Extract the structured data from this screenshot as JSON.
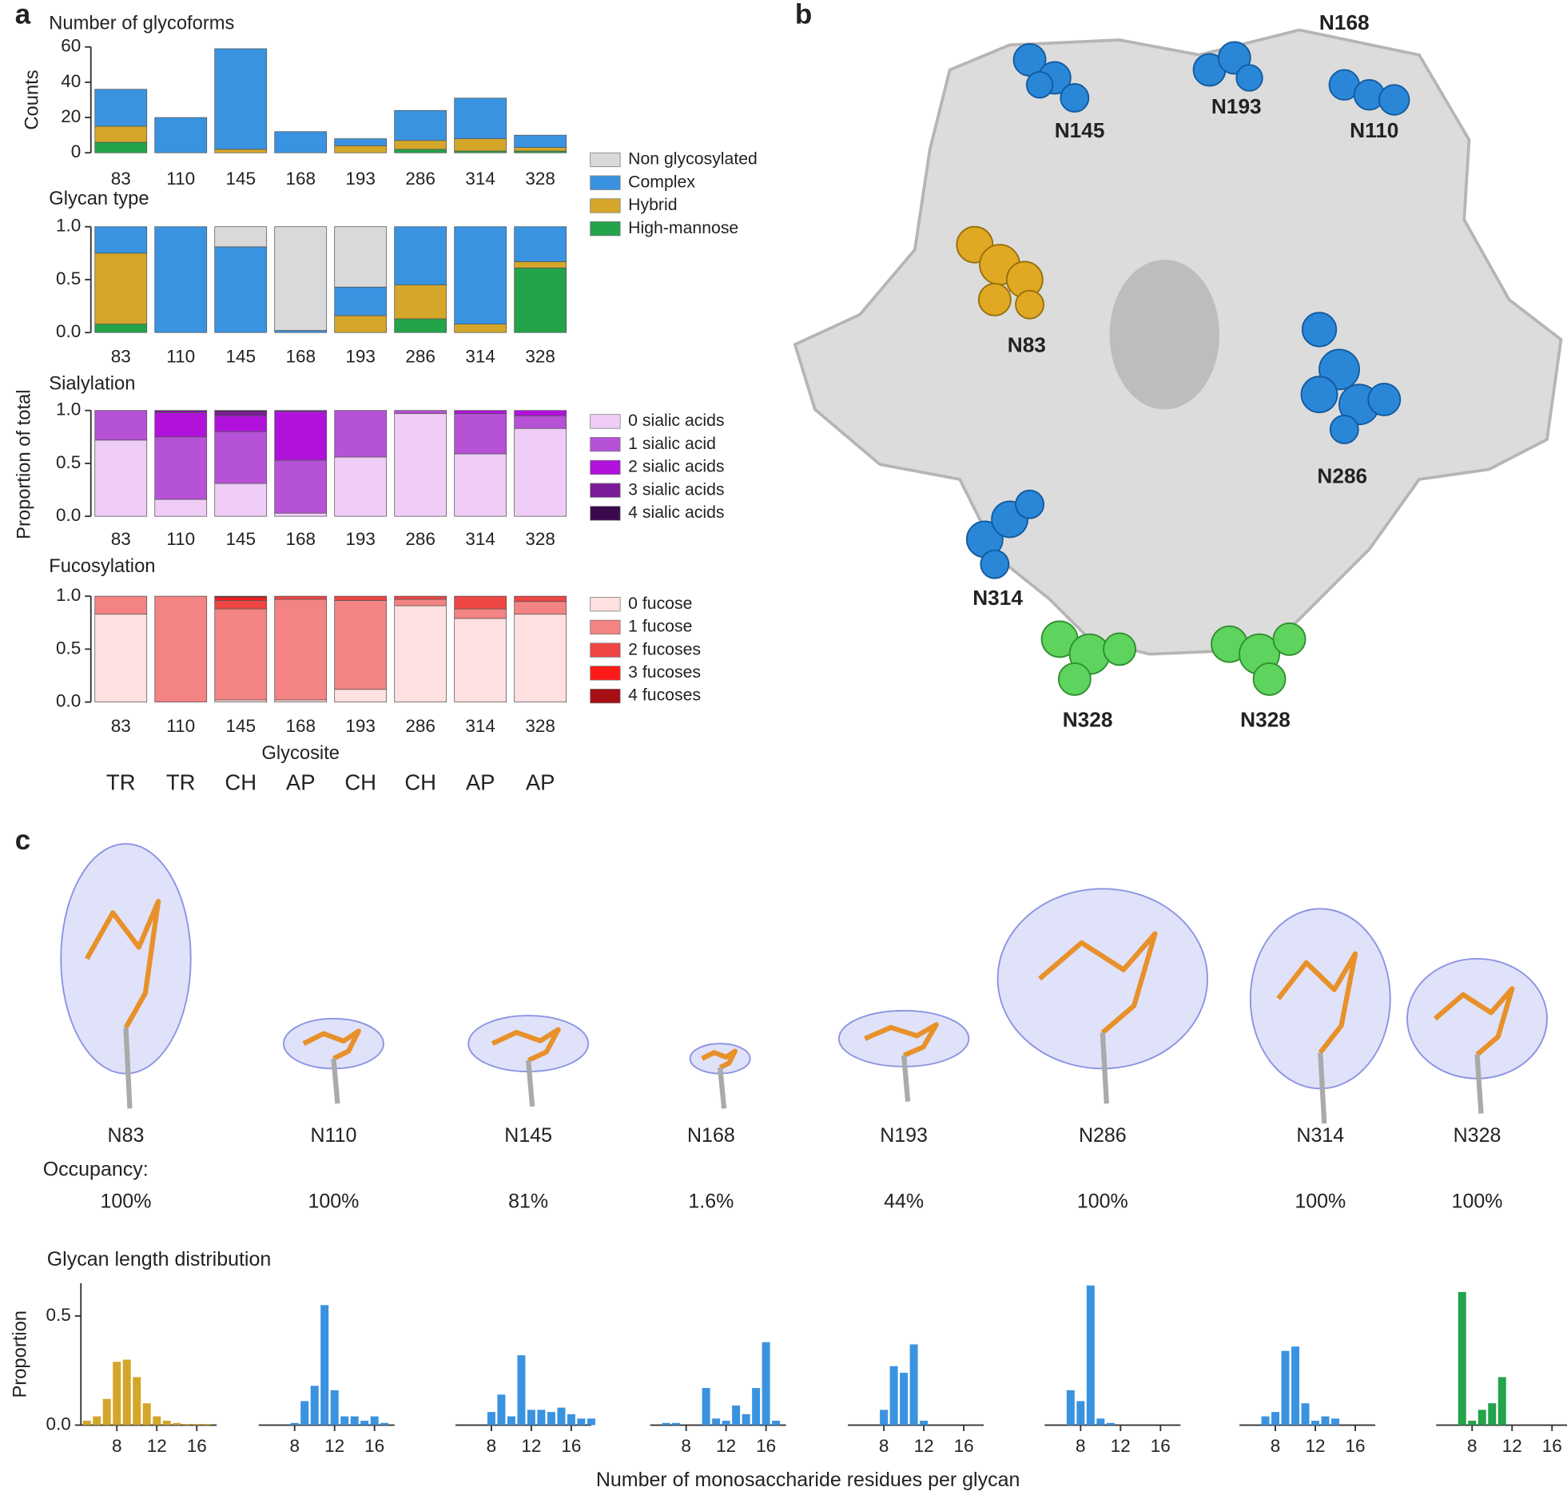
{
  "panel_labels": [
    "a",
    "b",
    "c"
  ],
  "glycosite_classes": [
    "TR",
    "TR",
    "CH",
    "AP",
    "CH",
    "CH",
    "AP",
    "AP"
  ],
  "chart_data": [
    {
      "type": "stacked_bar",
      "title": "Number of glycoforms",
      "y_label": "Counts",
      "categories": [
        "83",
        "110",
        "145",
        "168",
        "193",
        "286",
        "314",
        "328"
      ],
      "ylim": [
        0,
        60
      ],
      "yticks": [
        0,
        20,
        40,
        60
      ],
      "series": [
        {
          "color": "#23a34a",
          "values": [
            6,
            0,
            0,
            0,
            0,
            2,
            1,
            1
          ]
        },
        {
          "color": "#d4a62a",
          "values": [
            9,
            0,
            2,
            0,
            4,
            5,
            7,
            2
          ]
        },
        {
          "color": "#3a93e0",
          "values": [
            21,
            20,
            57,
            12,
            4,
            17,
            23,
            7
          ]
        }
      ]
    },
    {
      "type": "stacked_bar",
      "title": "Glycan type",
      "categories": [
        "83",
        "110",
        "145",
        "168",
        "193",
        "286",
        "314",
        "328"
      ],
      "ylim": [
        0,
        1
      ],
      "yticks": [
        {
          "value": 0,
          "label": "0.0"
        },
        {
          "value": 0.5,
          "label": "0.5"
        },
        {
          "value": 1,
          "label": "1.0"
        }
      ],
      "legend": "right",
      "legend_reversed": true,
      "series": [
        {
          "name": "High-mannose",
          "color": "#23a34a",
          "values": [
            0.08,
            0,
            0,
            0,
            0,
            0.13,
            0,
            0.61
          ]
        },
        {
          "name": "Hybrid",
          "color": "#d4a62a",
          "values": [
            0.67,
            0,
            0,
            0,
            0.16,
            0.32,
            0.08,
            0.06
          ]
        },
        {
          "name": "Complex",
          "color": "#3a93e0",
          "values": [
            0.25,
            1.0,
            0.81,
            0.02,
            0.27,
            0.55,
            0.92,
            0.33
          ]
        },
        {
          "name": "Non glycosylated",
          "color": "#d9d9d9",
          "values": [
            0,
            0,
            0.19,
            0.98,
            0.57,
            0,
            0,
            0
          ]
        }
      ]
    },
    {
      "type": "stacked_bar",
      "title": "Sialylation",
      "y_label": "Proportion of total",
      "categories": [
        "83",
        "110",
        "145",
        "168",
        "193",
        "286",
        "314",
        "328"
      ],
      "ylim": [
        0,
        1
      ],
      "yticks": [
        {
          "value": 0,
          "label": "0.0"
        },
        {
          "value": 0.5,
          "label": "0.5"
        },
        {
          "value": 1,
          "label": "1.0"
        }
      ],
      "legend": "right",
      "series": [
        {
          "name": "0 sialic acids",
          "color": "#efcdf6",
          "values": [
            0.72,
            0.16,
            0.31,
            0.03,
            0.56,
            0.97,
            0.59,
            0.83
          ]
        },
        {
          "name": "1 sialic acid",
          "color": "#b552d6",
          "values": [
            0.28,
            0.59,
            0.49,
            0.5,
            0.44,
            0.03,
            0.38,
            0.12
          ]
        },
        {
          "name": "2 sialic acids",
          "color": "#b012dc",
          "values": [
            0,
            0.23,
            0.15,
            0.46,
            0,
            0,
            0.03,
            0.05
          ]
        },
        {
          "name": "3 sialic acids",
          "color": "#7b1b98",
          "values": [
            0,
            0.02,
            0.04,
            0.01,
            0,
            0,
            0,
            0
          ]
        },
        {
          "name": "4 sialic acids",
          "color": "#3b0a4c",
          "values": [
            0,
            0,
            0.01,
            0,
            0,
            0,
            0,
            0
          ]
        }
      ]
    },
    {
      "type": "stacked_bar",
      "title": "Fucosylation",
      "x_label": "Glycosite",
      "categories": [
        "83",
        "110",
        "145",
        "168",
        "193",
        "286",
        "314",
        "328"
      ],
      "ylim": [
        0,
        1
      ],
      "yticks": [
        {
          "value": 0,
          "label": "0.0"
        },
        {
          "value": 0.5,
          "label": "0.5"
        },
        {
          "value": 1,
          "label": "1.0"
        }
      ],
      "legend": "right",
      "series": [
        {
          "name": "0 fucose",
          "color": "#fde0df",
          "values": [
            0.83,
            0,
            0.02,
            0.02,
            0.12,
            0.91,
            0.79,
            0.83
          ]
        },
        {
          "name": "1 fucose",
          "color": "#f48383",
          "values": [
            0.17,
            1.0,
            0.86,
            0.95,
            0.84,
            0.06,
            0.09,
            0.12
          ]
        },
        {
          "name": "2 fucoses",
          "color": "#ee4545",
          "values": [
            0,
            0,
            0.08,
            0.03,
            0.04,
            0.03,
            0.12,
            0.05
          ]
        },
        {
          "name": "3 fucoses",
          "color": "#ff1a1a",
          "values": [
            0,
            0,
            0.03,
            0,
            0,
            0,
            0,
            0
          ]
        },
        {
          "name": "4 fucoses",
          "color": "#a50f15",
          "values": [
            0,
            0,
            0.01,
            0,
            0,
            0,
            0,
            0
          ]
        }
      ]
    },
    {
      "type": "bar",
      "y_label": "Proportion",
      "color": "#d4a62a",
      "xlim": [
        4.4,
        18
      ],
      "xticks": [
        8,
        12,
        16
      ],
      "ylim": [
        0,
        0.65
      ],
      "yticks": [
        {
          "value": 0,
          "label": "0.0"
        },
        {
          "value": 0.5,
          "label": "0.5"
        }
      ],
      "x": [
        5,
        6,
        7,
        8,
        9,
        10,
        11,
        12,
        13,
        14,
        15,
        16,
        17
      ],
      "values": [
        0.02,
        0.04,
        0.12,
        0.29,
        0.3,
        0.22,
        0.1,
        0.04,
        0.02,
        0.01,
        0.005,
        0.005,
        0.005
      ]
    },
    {
      "type": "bar",
      "color": "#3a93e0",
      "xlim": [
        4.4,
        18
      ],
      "xticks": [
        8,
        12,
        16
      ],
      "ylim": [
        0,
        0.65
      ],
      "x": [
        8,
        9,
        10,
        11,
        12,
        13,
        14,
        15,
        16,
        17
      ],
      "values": [
        0.01,
        0.11,
        0.18,
        0.55,
        0.16,
        0.04,
        0.04,
        0.02,
        0.04,
        0.01
      ]
    },
    {
      "type": "bar",
      "color": "#3a93e0",
      "xlim": [
        4.4,
        18
      ],
      "xticks": [
        8,
        12,
        16
      ],
      "ylim": [
        0,
        0.65
      ],
      "x": [
        8,
        9,
        10,
        11,
        12,
        13,
        14,
        15,
        16,
        17,
        18
      ],
      "values": [
        0.06,
        0.14,
        0.04,
        0.32,
        0.07,
        0.07,
        0.06,
        0.08,
        0.05,
        0.03,
        0.03
      ]
    },
    {
      "type": "bar",
      "color": "#3a93e0",
      "xlim": [
        4.4,
        18
      ],
      "xticks": [
        8,
        12,
        16
      ],
      "ylim": [
        0,
        0.65
      ],
      "x": [
        6,
        7,
        10,
        11,
        12,
        13,
        14,
        15,
        16,
        17
      ],
      "values": [
        0.01,
        0.01,
        0.17,
        0.03,
        0.02,
        0.09,
        0.05,
        0.17,
        0.38,
        0.02
      ]
    },
    {
      "type": "bar",
      "color": "#3a93e0",
      "xlim": [
        4.4,
        18
      ],
      "xticks": [
        8,
        12,
        16
      ],
      "ylim": [
        0,
        0.65
      ],
      "x": [
        8,
        9,
        10,
        11,
        12
      ],
      "values": [
        0.07,
        0.27,
        0.24,
        0.37,
        0.02
      ]
    },
    {
      "type": "bar",
      "color": "#3a93e0",
      "xlim": [
        4.4,
        18
      ],
      "xticks": [
        8,
        12,
        16
      ],
      "ylim": [
        0,
        0.65
      ],
      "x": [
        7,
        8,
        9,
        10,
        11
      ],
      "values": [
        0.16,
        0.11,
        0.64,
        0.03,
        0.01
      ]
    },
    {
      "type": "bar",
      "color": "#3a93e0",
      "xlim": [
        4.4,
        18
      ],
      "xticks": [
        8,
        12,
        16
      ],
      "ylim": [
        0,
        0.65
      ],
      "x": [
        7,
        8,
        9,
        10,
        11,
        12,
        13,
        14
      ],
      "values": [
        0.04,
        0.06,
        0.34,
        0.36,
        0.1,
        0.02,
        0.04,
        0.03
      ]
    },
    {
      "type": "bar",
      "color": "#23a34a",
      "xlim": [
        4.4,
        18
      ],
      "xticks": [
        8,
        12,
        16
      ],
      "ylim": [
        0,
        0.65
      ],
      "x": [
        7,
        8,
        9,
        10,
        11
      ],
      "values": [
        0.61,
        0.02,
        0.07,
        0.1,
        0.22
      ]
    }
  ],
  "structure_panel": {
    "sites": [
      "N168",
      "N145",
      "N193",
      "N110",
      "N83",
      "N286",
      "N314",
      "N328",
      "N328"
    ]
  },
  "density_panel": {
    "sites": [
      "N83",
      "N110",
      "N145",
      "N168",
      "N193",
      "N286",
      "N314",
      "N328"
    ],
    "occupancy_label": "Occupancy:",
    "occupancy": [
      "100%",
      "100%",
      "81%",
      "1.6%",
      "44%",
      "100%",
      "100%",
      "100%"
    ],
    "histogram_title": "Glycan length distribution",
    "x_label": "Number of monosaccharide residues per glycan"
  }
}
